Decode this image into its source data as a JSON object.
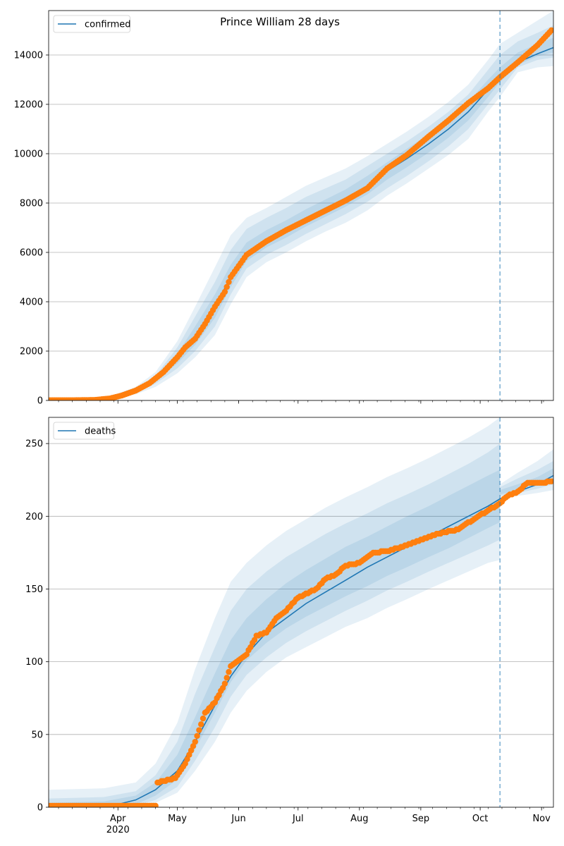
{
  "figure": {
    "title": "Prince William 28 days"
  },
  "colors": {
    "line": "#1f77b4",
    "band": "#1f77b4",
    "observed": "#ff7f0e",
    "grid": "#b0b0b0",
    "vline": "#1f77b4"
  },
  "chart_data": [
    {
      "type": "line",
      "legend": "confirmed",
      "legend_loc": "upper left",
      "grid": "y",
      "xlim": [
        "2020-02-26",
        "2020-11-07"
      ],
      "ylim": [
        0,
        15800
      ],
      "yticks": [
        0,
        2000,
        4000,
        6000,
        8000,
        10000,
        12000,
        14000
      ],
      "xticks": [
        {
          "date": "2020-04-01",
          "label": "Apr",
          "sub": "2020"
        },
        {
          "date": "2020-05-01",
          "label": "May"
        },
        {
          "date": "2020-06-01",
          "label": "Jun"
        },
        {
          "date": "2020-07-01",
          "label": "Jul"
        },
        {
          "date": "2020-08-01",
          "label": "Aug"
        },
        {
          "date": "2020-09-01",
          "label": "Sep"
        },
        {
          "date": "2020-10-01",
          "label": "Oct"
        },
        {
          "date": "2020-11-01",
          "label": "Nov"
        }
      ],
      "forecast_start": "2020-10-11",
      "model": {
        "x": [
          "2020-02-26",
          "2020-03-15",
          "2020-03-25",
          "2020-04-01",
          "2020-04-10",
          "2020-04-20",
          "2020-05-01",
          "2020-05-10",
          "2020-05-20",
          "2020-05-28",
          "2020-06-05",
          "2020-06-15",
          "2020-06-25",
          "2020-07-05",
          "2020-07-15",
          "2020-07-25",
          "2020-08-05",
          "2020-08-15",
          "2020-08-25",
          "2020-09-05",
          "2020-09-15",
          "2020-09-25",
          "2020-10-05",
          "2020-10-11",
          "2020-10-20",
          "2020-10-30",
          "2020-11-07"
        ],
        "y": [
          0,
          10,
          50,
          150,
          400,
          850,
          1700,
          2600,
          3800,
          5000,
          5900,
          6500,
          6950,
          7400,
          7800,
          8200,
          8700,
          9300,
          9800,
          10400,
          11000,
          11700,
          12600,
          13200,
          13700,
          14050,
          14300
        ]
      },
      "bands": {
        "x": [
          "2020-02-26",
          "2020-03-25",
          "2020-04-10",
          "2020-04-20",
          "2020-05-01",
          "2020-05-10",
          "2020-05-20",
          "2020-05-28",
          "2020-06-05",
          "2020-06-15",
          "2020-06-25",
          "2020-07-05",
          "2020-07-15",
          "2020-07-25",
          "2020-08-05",
          "2020-08-15",
          "2020-08-25",
          "2020-09-05",
          "2020-09-15",
          "2020-09-25",
          "2020-10-05",
          "2020-10-11",
          "2020-10-20",
          "2020-10-30",
          "2020-11-07"
        ],
        "outer_hi": [
          0,
          80,
          550,
          1150,
          2400,
          3800,
          5400,
          6700,
          7400,
          7800,
          8250,
          8700,
          9050,
          9400,
          9900,
          10400,
          10900,
          11500,
          12100,
          12800,
          13800,
          14450,
          14900,
          15400,
          15800
        ],
        "outer_lo": [
          0,
          20,
          250,
          550,
          1100,
          1750,
          2650,
          3900,
          5000,
          5600,
          6000,
          6450,
          6850,
          7200,
          7700,
          8300,
          8800,
          9400,
          9950,
          10600,
          11700,
          12300,
          13300,
          13500,
          13550
        ],
        "mid_hi": [
          0,
          65,
          480,
          1000,
          2150,
          3400,
          4800,
          6100,
          6950,
          7400,
          7800,
          8250,
          8600,
          8950,
          9500,
          10000,
          10500,
          11100,
          11700,
          12400,
          13400,
          14000,
          14550,
          14900,
          15200
        ],
        "mid_lo": [
          0,
          30,
          310,
          680,
          1300,
          2000,
          3000,
          4300,
          5350,
          5900,
          6300,
          6750,
          7150,
          7550,
          8050,
          8600,
          9100,
          9700,
          10300,
          11000,
          12000,
          12600,
          13500,
          13800,
          13900
        ],
        "inner_hi": [
          0,
          55,
          440,
          930,
          1900,
          3000,
          4300,
          5500,
          6400,
          6900,
          7300,
          7750,
          8150,
          8550,
          9100,
          9650,
          10200,
          10800,
          11400,
          12100,
          13000,
          13500,
          14100,
          14450,
          14700
        ],
        "inner_lo": [
          0,
          40,
          360,
          770,
          1500,
          2250,
          3350,
          4600,
          5650,
          6200,
          6600,
          7050,
          7450,
          7850,
          8350,
          8950,
          9450,
          10050,
          10650,
          11350,
          12300,
          12900,
          13600,
          13950,
          14100
        ]
      },
      "observed": {
        "x": [
          "2020-02-26",
          "2020-03-10",
          "2020-03-20",
          "2020-03-28",
          "2020-04-03",
          "2020-04-10",
          "2020-04-17",
          "2020-04-24",
          "2020-05-01",
          "2020-05-05",
          "2020-05-10",
          "2020-05-15",
          "2020-05-20",
          "2020-05-25",
          "2020-05-28",
          "2020-06-05",
          "2020-06-15",
          "2020-06-25",
          "2020-07-05",
          "2020-07-15",
          "2020-07-25",
          "2020-08-05",
          "2020-08-15",
          "2020-08-25",
          "2020-09-05",
          "2020-09-15",
          "2020-09-25",
          "2020-10-05",
          "2020-10-11",
          "2020-10-20",
          "2020-10-30",
          "2020-11-06"
        ],
        "y": [
          10,
          10,
          20,
          80,
          200,
          400,
          700,
          1150,
          1750,
          2150,
          2500,
          3100,
          3800,
          4400,
          5000,
          5900,
          6450,
          6900,
          7300,
          7700,
          8100,
          8600,
          9400,
          9950,
          10700,
          11350,
          12050,
          12650,
          13100,
          13700,
          14400,
          15000
        ]
      }
    },
    {
      "type": "line",
      "legend": "deaths",
      "legend_loc": "upper left",
      "grid": "y",
      "xlim": [
        "2020-02-26",
        "2020-11-07"
      ],
      "ylim": [
        0,
        268
      ],
      "yticks": [
        0,
        50,
        100,
        150,
        200,
        250
      ],
      "xticks": [
        {
          "date": "2020-04-01",
          "label": "Apr",
          "sub": "2020"
        },
        {
          "date": "2020-05-01",
          "label": "May"
        },
        {
          "date": "2020-06-01",
          "label": "Jun"
        },
        {
          "date": "2020-07-01",
          "label": "Jul"
        },
        {
          "date": "2020-08-01",
          "label": "Aug"
        },
        {
          "date": "2020-09-01",
          "label": "Sep"
        },
        {
          "date": "2020-10-01",
          "label": "Oct"
        },
        {
          "date": "2020-11-01",
          "label": "Nov"
        }
      ],
      "forecast_start": "2020-10-11",
      "model": {
        "x": [
          "2020-02-26",
          "2020-03-20",
          "2020-04-01",
          "2020-04-10",
          "2020-04-20",
          "2020-05-01",
          "2020-05-10",
          "2020-05-20",
          "2020-05-28",
          "2020-06-05",
          "2020-06-15",
          "2020-06-25",
          "2020-07-05",
          "2020-07-15",
          "2020-07-25",
          "2020-08-05",
          "2020-08-15",
          "2020-08-25",
          "2020-09-05",
          "2020-09-15",
          "2020-09-25",
          "2020-10-05",
          "2020-10-11",
          "2020-10-20",
          "2020-10-30",
          "2020-11-07"
        ],
        "y": [
          0,
          0,
          2,
          5,
          12,
          25,
          45,
          70,
          90,
          105,
          120,
          130,
          140,
          148,
          156,
          165,
          172,
          179,
          186,
          193,
          200,
          207,
          212,
          217,
          222,
          228
        ]
      },
      "bands": {
        "x": [
          "2020-02-26",
          "2020-03-25",
          "2020-04-10",
          "2020-04-20",
          "2020-05-01",
          "2020-05-10",
          "2020-05-20",
          "2020-05-28",
          "2020-06-05",
          "2020-06-15",
          "2020-06-25",
          "2020-07-05",
          "2020-07-15",
          "2020-07-25",
          "2020-08-05",
          "2020-08-15",
          "2020-08-25",
          "2020-09-05",
          "2020-09-15",
          "2020-09-25",
          "2020-10-05",
          "2020-10-11",
          "2020-10-11",
          "2020-10-20",
          "2020-10-30",
          "2020-11-07"
        ],
        "outer_hi": [
          12,
          13,
          17,
          30,
          58,
          95,
          130,
          155,
          168,
          180,
          190,
          198,
          206,
          213,
          220,
          227,
          233,
          240,
          247,
          254,
          262,
          268,
          222,
          230,
          238,
          246
        ],
        "outer_lo": [
          0,
          0,
          0,
          3,
          10,
          25,
          45,
          65,
          80,
          93,
          103,
          110,
          117,
          124,
          130,
          137,
          143,
          150,
          156,
          162,
          168,
          170,
          212,
          214,
          216,
          218
        ],
        "mid_hi": [
          6,
          7,
          11,
          22,
          45,
          78,
          110,
          135,
          150,
          162,
          172,
          180,
          188,
          195,
          202,
          209,
          215,
          222,
          229,
          236,
          244,
          250,
          220,
          226,
          232,
          238
        ],
        "mid_lo": [
          0,
          0,
          1,
          5,
          14,
          32,
          55,
          76,
          91,
          103,
          113,
          121,
          128,
          135,
          142,
          149,
          155,
          162,
          168,
          174,
          180,
          184,
          214,
          216,
          219,
          222
        ],
        "inner_hi": [
          3,
          4,
          8,
          17,
          36,
          62,
          92,
          115,
          130,
          143,
          154,
          163,
          171,
          179,
          186,
          193,
          200,
          207,
          214,
          221,
          228,
          232,
          218,
          222,
          227,
          233
        ],
        "inner_lo": [
          0,
          0,
          2,
          8,
          19,
          40,
          65,
          86,
          101,
          113,
          123,
          131,
          138,
          145,
          152,
          159,
          165,
          172,
          178,
          185,
          192,
          196,
          215,
          218,
          221,
          225
        ]
      },
      "observed": {
        "x": [
          "2020-02-26",
          "2020-03-15",
          "2020-03-30",
          "2020-04-10",
          "2020-04-20",
          "2020-04-21",
          "2020-04-30",
          "2020-05-05",
          "2020-05-10",
          "2020-05-15",
          "2020-05-20",
          "2020-05-25",
          "2020-05-28",
          "2020-06-05",
          "2020-06-10",
          "2020-06-15",
          "2020-06-20",
          "2020-06-25",
          "2020-07-01",
          "2020-07-10",
          "2020-07-15",
          "2020-07-20",
          "2020-07-25",
          "2020-08-01",
          "2020-08-08",
          "2020-08-15",
          "2020-08-25",
          "2020-09-01",
          "2020-09-10",
          "2020-09-20",
          "2020-09-30",
          "2020-10-05",
          "2020-10-10",
          "2020-10-15",
          "2020-10-20",
          "2020-10-25",
          "2020-11-01",
          "2020-11-06"
        ],
        "y": [
          1,
          1,
          1,
          1,
          1,
          17,
          20,
          30,
          45,
          65,
          72,
          85,
          97,
          105,
          118,
          120,
          130,
          135,
          144,
          150,
          157,
          160,
          166,
          168,
          175,
          176,
          180,
          184,
          188,
          191,
          200,
          204,
          208,
          214,
          217,
          223,
          223,
          224
        ]
      }
    }
  ]
}
